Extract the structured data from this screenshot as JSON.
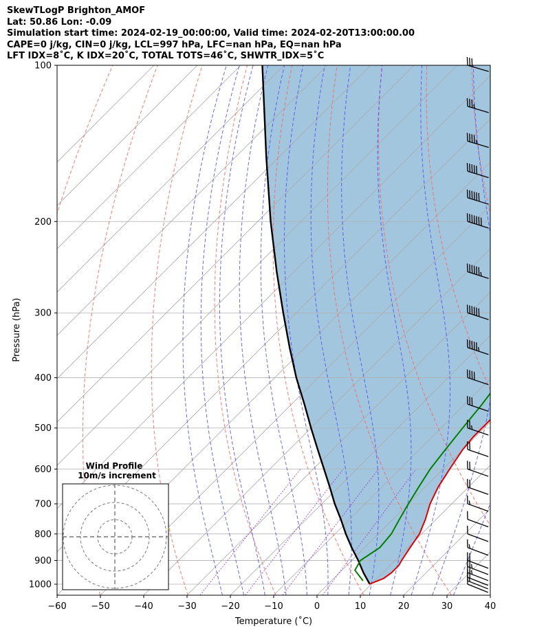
{
  "header": {
    "line1": "SkewTLogP Brighton_AMOF",
    "line2": "Lat: 50.86   Lon: -0.09",
    "line3": "Simulation start time: 2024-02-19_00:00:00, Valid time: 2024-02-20T13:00:00.00",
    "line4": "CAPE=0 j/kg, CIN=0 j/kg, LCL=997 hPa, LFC=nan hPa, EQ=nan hPa",
    "line5": "LFT IDX=8˚C, K IDX=20˚C, TOTAL TOTS=46˚C, SHWTR_IDX=5˚C"
  },
  "chart_data": {
    "type": "line",
    "title": "",
    "xlabel": "Temperature (˚C)",
    "ylabel": "Pressure (hPa)",
    "x_ticks": [
      -60,
      -50,
      -40,
      -30,
      -20,
      -10,
      0,
      10,
      20,
      30,
      40
    ],
    "x_tick_labels": [
      "−60",
      "−50",
      "−40",
      "−30",
      "−20",
      "−10",
      "0",
      "10",
      "20",
      "30",
      "40"
    ],
    "y_ticks": [
      1000,
      900,
      800,
      700,
      600,
      500,
      400,
      300,
      200,
      100
    ],
    "y_tick_labels": [
      "1000",
      "900",
      "800",
      "700",
      "600",
      "500",
      "400",
      "300",
      "200",
      "100"
    ],
    "xlim": [
      -60,
      40
    ],
    "ylim": [
      1050,
      100
    ],
    "y_scale": "log",
    "skew": "skew-T (isotherms slanted 45°)",
    "grid": true,
    "colors": {
      "temperature": "#e00000",
      "dewpoint": "#008000",
      "parcel": "#000000",
      "fill": "#a3c6df",
      "dry_adiabats": "#ff6060",
      "moist_adiabats": "#4c4cff",
      "mixing_ratio": "#9933cc",
      "isotherms": "#aaaaaa"
    },
    "series": [],
    "temperature_profile": [
      [
        1000,
        9.5
      ],
      [
        975,
        11.5
      ],
      [
        950,
        12
      ],
      [
        920,
        12
      ],
      [
        900,
        11.5
      ],
      [
        850,
        10.5
      ],
      [
        800,
        9.5
      ],
      [
        750,
        7.5
      ],
      [
        700,
        5
      ],
      [
        650,
        3
      ],
      [
        600,
        1.5
      ],
      [
        550,
        0
      ],
      [
        520,
        -0.5
      ],
      [
        500,
        -0.5
      ],
      [
        450,
        -0.5
      ],
      [
        400,
        -0.5
      ],
      [
        360,
        -1
      ],
      [
        330,
        -2.5
      ],
      [
        300,
        -5
      ],
      [
        270,
        -8.5
      ],
      [
        240,
        -12
      ],
      [
        210,
        -16.5
      ],
      [
        190,
        -17
      ],
      [
        175,
        -17
      ],
      [
        160,
        -11.5
      ],
      [
        145,
        -5.5
      ],
      [
        130,
        -4
      ],
      [
        115,
        0
      ],
      [
        100,
        4
      ]
    ],
    "dewpoint_profile": [
      [
        985,
        7.3
      ],
      [
        940,
        3
      ],
      [
        900,
        2
      ],
      [
        850,
        3.5
      ],
      [
        800,
        3
      ],
      [
        750,
        1.5
      ],
      [
        700,
        0
      ],
      [
        650,
        -1.5
      ],
      [
        600,
        -3
      ],
      [
        550,
        -4
      ],
      [
        500,
        -5
      ],
      [
        450,
        -6
      ],
      [
        400,
        -7.5
      ],
      [
        350,
        -10.5
      ],
      [
        310,
        -16
      ],
      [
        290,
        -19
      ],
      [
        260,
        -19.5
      ],
      [
        240,
        -22
      ],
      [
        215,
        -25
      ],
      [
        200,
        -25.5
      ],
      [
        180,
        -25.5
      ],
      [
        170,
        -24.5
      ],
      [
        160,
        -20
      ],
      [
        150,
        -19
      ],
      [
        140,
        -18
      ],
      [
        100,
        -9
      ]
    ],
    "parcel_profile": [
      [
        1000,
        9.5
      ],
      [
        997,
        9.4
      ],
      [
        950,
        5.5
      ],
      [
        900,
        1.5
      ],
      [
        850,
        -3
      ],
      [
        800,
        -7.5
      ],
      [
        750,
        -12
      ],
      [
        700,
        -17
      ],
      [
        650,
        -22
      ],
      [
        600,
        -27.5
      ],
      [
        550,
        -33.5
      ],
      [
        500,
        -40
      ],
      [
        450,
        -47
      ],
      [
        400,
        -55
      ],
      [
        350,
        -63.5
      ],
      [
        300,
        -73
      ],
      [
        250,
        -84
      ],
      [
        200,
        -97
      ],
      [
        150,
        -113
      ],
      [
        100,
        -135
      ]
    ],
    "wind_barb_pressures": [
      1000,
      985,
      970,
      950,
      925,
      900,
      850,
      800,
      750,
      700,
      650,
      600,
      550,
      500,
      450,
      400,
      350,
      300,
      250,
      200,
      180,
      160,
      140,
      120,
      100
    ],
    "wind_barbs_kt": [
      10,
      15,
      20,
      25,
      25,
      20,
      15,
      10,
      10,
      15,
      20,
      20,
      20,
      25,
      30,
      40,
      55,
      60,
      65,
      70,
      60,
      50,
      45,
      35,
      30
    ],
    "hodograph": {
      "title": "Wind Profile",
      "subtitle": "10m/s increment",
      "rings": 3
    }
  }
}
